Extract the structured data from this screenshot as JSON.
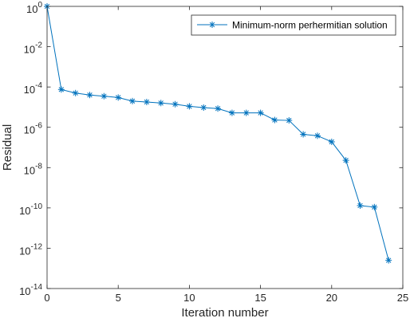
{
  "chart_data": {
    "type": "line",
    "title": "",
    "xlabel": "Iteration number",
    "ylabel": "Residual",
    "xlim": [
      0,
      25
    ],
    "ylim": [
      1e-14,
      1
    ],
    "yscale": "log",
    "grid": false,
    "legend_position": "top-right",
    "x_ticks": [
      "0",
      "5",
      "10",
      "15",
      "20",
      "25"
    ],
    "y_ticks": [
      {
        "base": "10",
        "exp": "0"
      },
      {
        "base": "10",
        "exp": "-2"
      },
      {
        "base": "10",
        "exp": "-4"
      },
      {
        "base": "10",
        "exp": "-6"
      },
      {
        "base": "10",
        "exp": "-8"
      },
      {
        "base": "10",
        "exp": "-10"
      },
      {
        "base": "10",
        "exp": "-12"
      },
      {
        "base": "10",
        "exp": "-14"
      }
    ],
    "series": [
      {
        "name": "Minimum-norm perhermitian solution",
        "color": "#0072BD",
        "marker": "asterisk",
        "x": [
          0,
          1,
          2,
          3,
          4,
          5,
          6,
          7,
          8,
          9,
          10,
          11,
          12,
          13,
          14,
          15,
          16,
          17,
          18,
          19,
          20,
          21,
          22,
          23,
          24
        ],
        "y": [
          1,
          7.5e-05,
          5e-05,
          4e-05,
          3.5e-05,
          3e-05,
          2e-05,
          1.8e-05,
          1.6e-05,
          1.4e-05,
          1.1e-05,
          9.5e-06,
          8.5e-06,
          5.2e-06,
          5.2e-06,
          5.2e-06,
          2.3e-06,
          2.2e-06,
          4.5e-07,
          3.8e-07,
          1.9e-07,
          2.3e-08,
          1.3e-10,
          1.1e-10,
          2.5e-13
        ]
      }
    ]
  }
}
